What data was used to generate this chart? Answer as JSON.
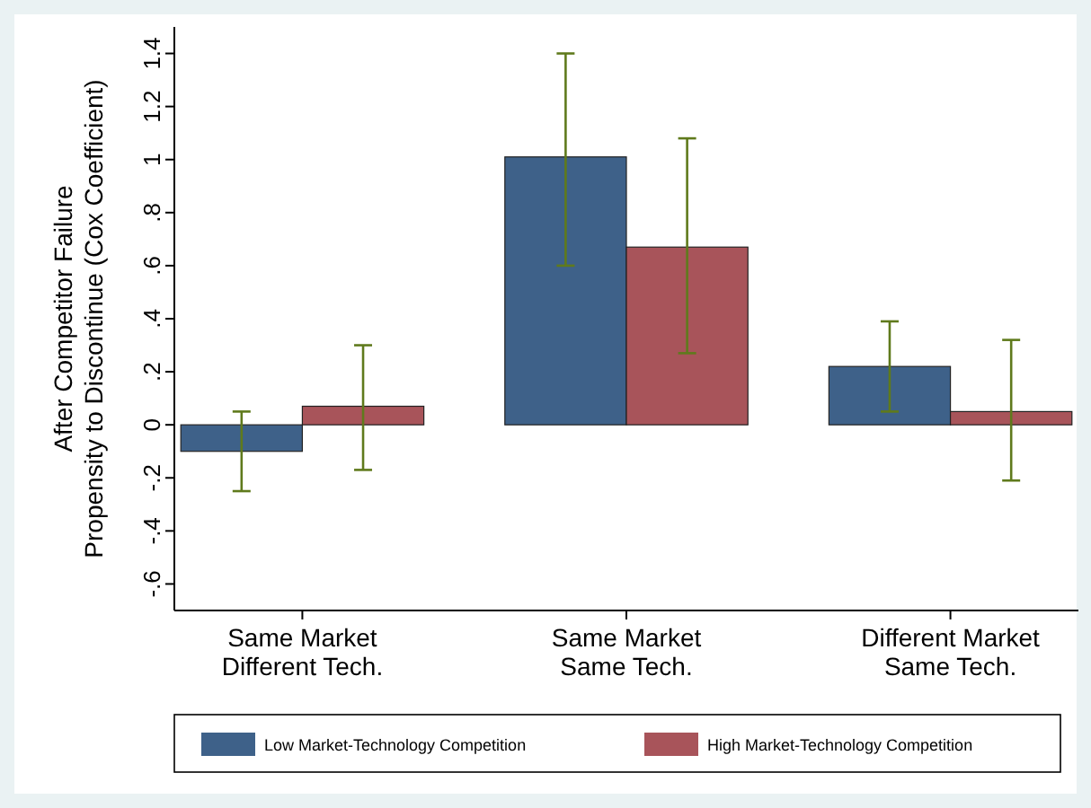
{
  "chart_data": {
    "type": "bar",
    "ylabel": "After Competitor Failure\nPropensity to Discontinue (Cox Coefficient)",
    "categories": [
      "Same Market\nDifferent Tech.",
      "Same Market\nSame Tech.",
      "Different Market\nSame Tech."
    ],
    "series": [
      {
        "name": "Low Market-Technology Competition",
        "color": "#3e6189",
        "values": [
          -0.1,
          1.01,
          0.22
        ],
        "errors": [
          [
            -0.25,
            0.05
          ],
          [
            0.6,
            1.4
          ],
          [
            0.05,
            0.39
          ]
        ]
      },
      {
        "name": "High Market-Technology Competition",
        "color": "#a8545a",
        "values": [
          0.07,
          0.67,
          0.05
        ],
        "errors": [
          [
            -0.17,
            0.3
          ],
          [
            0.27,
            1.08
          ],
          [
            -0.21,
            0.32
          ]
        ]
      }
    ],
    "ylim": [
      -0.7,
      1.5
    ],
    "yticks": [
      {
        "value": -0.6,
        "label": "-.6"
      },
      {
        "value": -0.4,
        "label": "-.4"
      },
      {
        "value": -0.2,
        "label": "-.2"
      },
      0,
      {
        "value": 0.2,
        "label": ".2"
      },
      {
        "value": 0.4,
        "label": ".4"
      },
      {
        "value": 0.6,
        "label": ".6"
      },
      {
        "value": 0.8,
        "label": ".8"
      },
      1,
      1.2,
      1.4
    ],
    "grid": false,
    "legend": "bottom"
  }
}
